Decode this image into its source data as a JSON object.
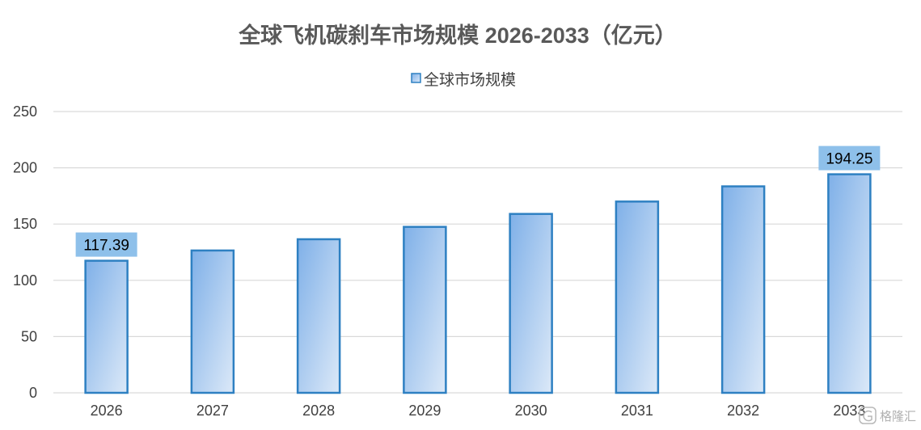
{
  "chart_data": {
    "type": "bar",
    "title": "全球飞机碳刹车市场规模 2026-2033（亿元）",
    "categories": [
      "2026",
      "2027",
      "2028",
      "2029",
      "2030",
      "2031",
      "2032",
      "2033"
    ],
    "series": [
      {
        "name": "全球市场规模",
        "values": [
          117.39,
          126.5,
          136.5,
          147.5,
          159.0,
          170.0,
          183.5,
          194.25
        ]
      }
    ],
    "data_labels": [
      {
        "category": "2026",
        "text": "117.39"
      },
      {
        "category": "2033",
        "text": "194.25"
      }
    ],
    "ylim": [
      0,
      250
    ],
    "yticks": [
      0,
      50,
      100,
      150,
      200,
      250
    ],
    "grid": true,
    "legend_position": "top-center",
    "colors": {
      "bar_fill_dark": "#7fb0e8",
      "bar_fill_light": "#dce9f8",
      "bar_border": "#2e80c2",
      "label_background": "#8ec0ea",
      "grid": "#d9d9d9"
    }
  },
  "watermark": {
    "icon": "gelonghui-logo-icon",
    "text": "格隆汇"
  }
}
